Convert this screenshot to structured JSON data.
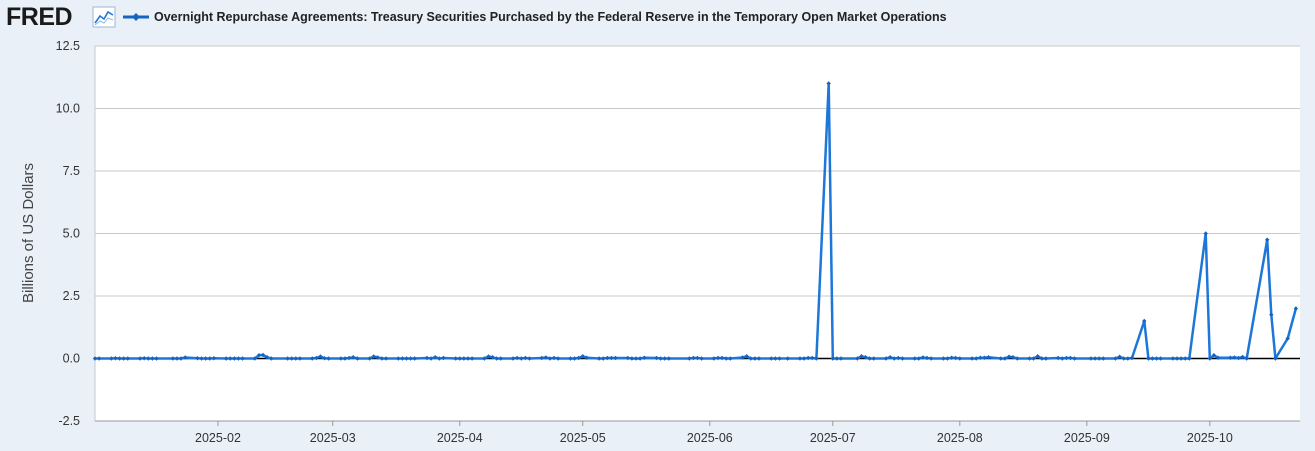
{
  "header": {
    "logo_text": "FRED",
    "logo_icon": "line-chart-icon",
    "series_title": "Overnight Repurchase Agreements: Treasury Securities Purchased by the Federal Reserve in the Temporary Open Market Operations"
  },
  "colors": {
    "series": "#1565c0",
    "line": "#1c77d8",
    "background": "#e9f0f8",
    "plot": "#ffffff",
    "grid": "#c9c9c9",
    "zero_line": "#000000"
  },
  "chart_data": {
    "type": "line",
    "title": "Overnight Repurchase Agreements: Treasury Securities Purchased by the Federal Reserve in the Temporary Open Market Operations",
    "xlabel": "",
    "ylabel": "Billions of US Dollars",
    "ylim": [
      -2.5,
      12.5
    ],
    "yticks": [
      "-2.5",
      "0.0",
      "2.5",
      "5.0",
      "7.5",
      "10.0",
      "12.5"
    ],
    "xticks": [
      "2025-02",
      "2025-03",
      "2025-04",
      "2025-05",
      "2025-06",
      "2025-07",
      "2025-08",
      "2025-09",
      "2025-10"
    ],
    "xlim": [
      "2025-01-02",
      "2025-10-23"
    ],
    "grid": true,
    "legend": "top-left",
    "series": [
      {
        "name": "Overnight Repurchase Agreements: Treasury Securities Purchased by the Federal Reserve in the Temporary Open Market Operations",
        "points": [
          [
            "2025-01-02",
            0.0
          ],
          [
            "2025-01-03",
            0.0
          ],
          [
            "2025-01-06",
            0.0
          ],
          [
            "2025-01-07",
            0.01
          ],
          [
            "2025-01-08",
            0.0
          ],
          [
            "2025-01-09",
            0.0
          ],
          [
            "2025-01-10",
            0.0
          ],
          [
            "2025-01-13",
            0.0
          ],
          [
            "2025-01-14",
            0.01
          ],
          [
            "2025-01-15",
            0.0
          ],
          [
            "2025-01-16",
            0.0
          ],
          [
            "2025-01-17",
            0.0
          ],
          [
            "2025-01-21",
            0.0
          ],
          [
            "2025-01-22",
            0.0
          ],
          [
            "2025-01-23",
            0.0
          ],
          [
            "2025-01-24",
            0.04
          ],
          [
            "2025-01-27",
            0.01
          ],
          [
            "2025-01-28",
            0.0
          ],
          [
            "2025-01-29",
            0.0
          ],
          [
            "2025-01-30",
            0.0
          ],
          [
            "2025-01-31",
            0.01
          ],
          [
            "2025-02-03",
            0.0
          ],
          [
            "2025-02-04",
            0.0
          ],
          [
            "2025-02-05",
            0.0
          ],
          [
            "2025-02-06",
            0.0
          ],
          [
            "2025-02-07",
            0.0
          ],
          [
            "2025-02-10",
            0.0
          ],
          [
            "2025-02-11",
            0.13
          ],
          [
            "2025-02-12",
            0.14
          ],
          [
            "2025-02-13",
            0.05
          ],
          [
            "2025-02-14",
            0.0
          ],
          [
            "2025-02-18",
            0.0
          ],
          [
            "2025-02-19",
            0.0
          ],
          [
            "2025-02-20",
            0.0
          ],
          [
            "2025-02-21",
            0.0
          ],
          [
            "2025-02-24",
            0.0
          ],
          [
            "2025-02-25",
            0.02
          ],
          [
            "2025-02-26",
            0.08
          ],
          [
            "2025-02-27",
            0.01
          ],
          [
            "2025-02-28",
            0.0
          ],
          [
            "2025-03-03",
            0.0
          ],
          [
            "2025-03-04",
            0.0
          ],
          [
            "2025-03-05",
            0.02
          ],
          [
            "2025-03-06",
            0.05
          ],
          [
            "2025-03-07",
            0.0
          ],
          [
            "2025-03-10",
            0.0
          ],
          [
            "2025-03-11",
            0.08
          ],
          [
            "2025-03-12",
            0.04
          ],
          [
            "2025-03-13",
            0.0
          ],
          [
            "2025-03-14",
            0.0
          ],
          [
            "2025-03-17",
            0.0
          ],
          [
            "2025-03-18",
            0.0
          ],
          [
            "2025-03-19",
            0.0
          ],
          [
            "2025-03-20",
            0.0
          ],
          [
            "2025-03-21",
            0.0
          ],
          [
            "2025-03-24",
            0.02
          ],
          [
            "2025-03-25",
            0.0
          ],
          [
            "2025-03-26",
            0.05
          ],
          [
            "2025-03-27",
            0.0
          ],
          [
            "2025-03-28",
            0.02
          ],
          [
            "2025-03-31",
            0.0
          ],
          [
            "2025-04-01",
            0.0
          ],
          [
            "2025-04-02",
            0.0
          ],
          [
            "2025-04-03",
            0.0
          ],
          [
            "2025-04-04",
            0.0
          ],
          [
            "2025-04-07",
            0.0
          ],
          [
            "2025-04-08",
            0.08
          ],
          [
            "2025-04-09",
            0.05
          ],
          [
            "2025-04-10",
            0.0
          ],
          [
            "2025-04-11",
            0.0
          ],
          [
            "2025-04-14",
            0.0
          ],
          [
            "2025-04-15",
            0.02
          ],
          [
            "2025-04-16",
            0.0
          ],
          [
            "2025-04-17",
            0.02
          ],
          [
            "2025-04-18",
            0.0
          ],
          [
            "2025-04-21",
            0.02
          ],
          [
            "2025-04-22",
            0.04
          ],
          [
            "2025-04-23",
            0.0
          ],
          [
            "2025-04-24",
            0.02
          ],
          [
            "2025-04-25",
            0.0
          ],
          [
            "2025-04-28",
            0.0
          ],
          [
            "2025-04-29",
            0.0
          ],
          [
            "2025-04-30",
            0.02
          ],
          [
            "2025-05-01",
            0.09
          ],
          [
            "2025-05-02",
            0.03
          ],
          [
            "2025-05-05",
            0.0
          ],
          [
            "2025-05-06",
            0.0
          ],
          [
            "2025-05-07",
            0.02
          ],
          [
            "2025-05-08",
            0.02
          ],
          [
            "2025-05-09",
            0.02
          ],
          [
            "2025-05-12",
            0.02
          ],
          [
            "2025-05-13",
            0.0
          ],
          [
            "2025-05-14",
            0.0
          ],
          [
            "2025-05-15",
            0.0
          ],
          [
            "2025-05-16",
            0.03
          ],
          [
            "2025-05-19",
            0.02
          ],
          [
            "2025-05-20",
            0.0
          ],
          [
            "2025-05-21",
            0.0
          ],
          [
            "2025-05-22",
            0.0
          ],
          [
            "2025-05-27",
            0.0
          ],
          [
            "2025-05-28",
            0.02
          ],
          [
            "2025-05-29",
            0.02
          ],
          [
            "2025-05-30",
            0.0
          ],
          [
            "2025-06-02",
            0.0
          ],
          [
            "2025-06-03",
            0.02
          ],
          [
            "2025-06-04",
            0.02
          ],
          [
            "2025-06-05",
            0.0
          ],
          [
            "2025-06-06",
            0.0
          ],
          [
            "2025-06-09",
            0.04
          ],
          [
            "2025-06-10",
            0.09
          ],
          [
            "2025-06-11",
            0.0
          ],
          [
            "2025-06-12",
            0.0
          ],
          [
            "2025-06-13",
            0.0
          ],
          [
            "2025-06-16",
            0.0
          ],
          [
            "2025-06-17",
            0.0
          ],
          [
            "2025-06-18",
            0.0
          ],
          [
            "2025-06-20",
            0.0
          ],
          [
            "2025-06-23",
            0.0
          ],
          [
            "2025-06-24",
            0.0
          ],
          [
            "2025-06-25",
            0.02
          ],
          [
            "2025-06-26",
            0.02
          ],
          [
            "2025-06-27",
            0.0
          ],
          [
            "2025-06-30",
            11.0
          ],
          [
            "2025-07-01",
            0.0
          ],
          [
            "2025-07-02",
            0.0
          ],
          [
            "2025-07-03",
            0.0
          ],
          [
            "2025-07-07",
            0.0
          ],
          [
            "2025-07-08",
            0.09
          ],
          [
            "2025-07-09",
            0.05
          ],
          [
            "2025-07-10",
            0.0
          ],
          [
            "2025-07-11",
            0.0
          ],
          [
            "2025-07-14",
            0.0
          ],
          [
            "2025-07-15",
            0.05
          ],
          [
            "2025-07-16",
            0.0
          ],
          [
            "2025-07-17",
            0.02
          ],
          [
            "2025-07-18",
            0.0
          ],
          [
            "2025-07-21",
            0.0
          ],
          [
            "2025-07-22",
            0.0
          ],
          [
            "2025-07-23",
            0.04
          ],
          [
            "2025-07-24",
            0.02
          ],
          [
            "2025-07-25",
            0.0
          ],
          [
            "2025-07-28",
            0.0
          ],
          [
            "2025-07-29",
            0.0
          ],
          [
            "2025-07-30",
            0.03
          ],
          [
            "2025-07-31",
            0.02
          ],
          [
            "2025-08-01",
            0.0
          ],
          [
            "2025-08-04",
            0.0
          ],
          [
            "2025-08-05",
            0.0
          ],
          [
            "2025-08-06",
            0.03
          ],
          [
            "2025-08-07",
            0.03
          ],
          [
            "2025-08-08",
            0.05
          ],
          [
            "2025-08-11",
            0.0
          ],
          [
            "2025-08-12",
            0.0
          ],
          [
            "2025-08-13",
            0.07
          ],
          [
            "2025-08-14",
            0.05
          ],
          [
            "2025-08-15",
            0.0
          ],
          [
            "2025-08-18",
            0.0
          ],
          [
            "2025-08-19",
            0.0
          ],
          [
            "2025-08-20",
            0.09
          ],
          [
            "2025-08-21",
            0.0
          ],
          [
            "2025-08-22",
            0.0
          ],
          [
            "2025-08-25",
            0.02
          ],
          [
            "2025-08-26",
            0.0
          ],
          [
            "2025-08-27",
            0.02
          ],
          [
            "2025-08-28",
            0.02
          ],
          [
            "2025-08-29",
            0.0
          ],
          [
            "2025-09-02",
            0.0
          ],
          [
            "2025-09-03",
            0.0
          ],
          [
            "2025-09-04",
            0.0
          ],
          [
            "2025-09-05",
            0.0
          ],
          [
            "2025-09-08",
            0.0
          ],
          [
            "2025-09-09",
            0.07
          ],
          [
            "2025-09-10",
            0.0
          ],
          [
            "2025-09-11",
            0.0
          ],
          [
            "2025-09-12",
            0.02
          ],
          [
            "2025-09-15",
            1.5
          ],
          [
            "2025-09-16",
            0.0
          ],
          [
            "2025-09-17",
            0.0
          ],
          [
            "2025-09-18",
            0.0
          ],
          [
            "2025-09-19",
            0.0
          ],
          [
            "2025-09-22",
            0.0
          ],
          [
            "2025-09-23",
            0.0
          ],
          [
            "2025-09-24",
            0.0
          ],
          [
            "2025-09-25",
            0.0
          ],
          [
            "2025-09-26",
            0.0
          ],
          [
            "2025-09-30",
            5.0
          ],
          [
            "2025-10-01",
            0.0
          ],
          [
            "2025-10-02",
            0.13
          ],
          [
            "2025-10-03",
            0.03
          ],
          [
            "2025-10-06",
            0.03
          ],
          [
            "2025-10-07",
            0.04
          ],
          [
            "2025-10-08",
            0.02
          ],
          [
            "2025-10-09",
            0.06
          ],
          [
            "2025-10-10",
            0.0
          ],
          [
            "2025-10-15",
            4.75
          ],
          [
            "2025-10-16",
            1.75
          ],
          [
            "2025-10-17",
            0.0
          ],
          [
            "2025-10-20",
            0.8
          ],
          [
            "2025-10-22",
            2.0
          ]
        ]
      }
    ]
  }
}
